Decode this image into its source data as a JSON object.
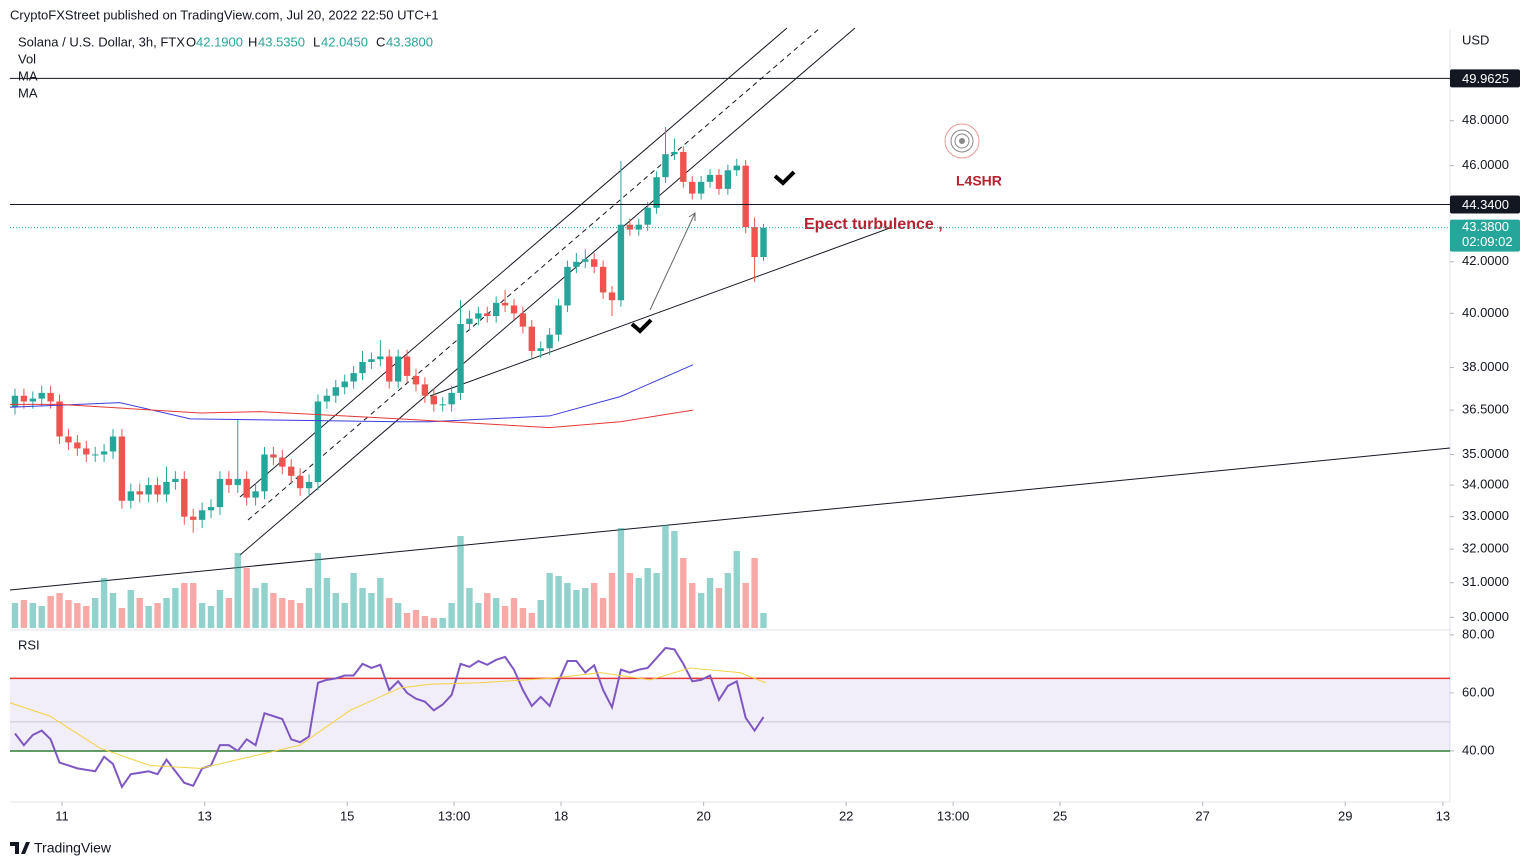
{
  "header": {
    "publisher": "CryptoFXStreet published on TradingView.com, Jul 20, 2022 22:50 UTC+1",
    "footer": "TradingView"
  },
  "chart_data": [
    {
      "type": "candlestick",
      "title": "Solana / U.S. Dollar, 3h, FTX",
      "ohlc_legend": [
        {
          "key": "O",
          "value": "42.1900"
        },
        {
          "key": "H",
          "value": "43.5350"
        },
        {
          "key": "L",
          "value": "42.0450"
        },
        {
          "key": "C",
          "value": "43.3800"
        }
      ],
      "volume_name": "Vol",
      "y_unit": "USD",
      "log_scale": true,
      "up_color": "#26a69a",
      "down_color": "#ef5350",
      "ylim": [
        29.7,
        52.3
      ],
      "yticks": [
        {
          "value": 48,
          "label": "48.0000"
        },
        {
          "value": 46,
          "label": "46.0000"
        },
        {
          "value": 42,
          "label": "42.0000"
        },
        {
          "value": 40,
          "label": "40.0000"
        },
        {
          "value": 38,
          "label": "38.0000"
        },
        {
          "value": 36.5,
          "label": "36.5000"
        },
        {
          "value": 35,
          "label": "35.0000"
        },
        {
          "value": 34,
          "label": "34.0000"
        },
        {
          "value": 33,
          "label": "33.0000"
        },
        {
          "value": 32,
          "label": "32.0000"
        },
        {
          "value": 31,
          "label": "31.0000"
        },
        {
          "value": 30,
          "label": "30.0000"
        }
      ],
      "xlim": [
        -0.73,
        19.47
      ],
      "x": [
        -0.66,
        -0.535,
        -0.41,
        -0.285,
        -0.16,
        -0.035,
        0.09,
        0.215,
        0.34,
        0.465,
        0.59,
        0.715,
        0.84,
        0.965,
        1.09,
        1.215,
        1.34,
        1.465,
        1.59,
        1.715,
        1.84,
        1.965,
        2.09,
        2.215,
        2.34,
        2.465,
        2.59,
        2.715,
        2.84,
        2.965,
        3.09,
        3.215,
        3.34,
        3.465,
        3.59,
        3.715,
        3.84,
        3.965,
        4.09,
        4.215,
        4.34,
        4.465,
        4.59,
        4.715,
        4.84,
        4.965,
        5.09,
        5.215,
        5.34,
        5.465,
        5.59,
        5.715,
        5.84,
        5.965,
        6.09,
        6.215,
        6.34,
        6.465,
        6.59,
        6.715,
        6.84,
        6.965,
        7.09,
        7.215,
        7.34,
        7.465,
        7.59,
        7.715,
        7.84,
        7.965,
        8.09,
        8.215,
        8.34,
        8.465,
        8.59,
        8.715,
        8.84,
        8.965,
        9.09,
        9.215,
        9.34,
        9.465,
        9.59,
        9.715,
        9.84
      ],
      "open": [
        36.6,
        37.0,
        36.8,
        36.9,
        37.1,
        36.8,
        35.6,
        35.4,
        35.2,
        35.0,
        35.0,
        35.1,
        35.6,
        33.5,
        33.8,
        33.7,
        34.0,
        33.7,
        34.1,
        34.2,
        33.0,
        32.9,
        33.2,
        33.3,
        34.2,
        34.0,
        34.2,
        33.6,
        33.8,
        35.0,
        34.9,
        34.6,
        34.3,
        33.9,
        34.1,
        36.8,
        37.0,
        37.3,
        37.5,
        37.8,
        38.2,
        38.3,
        38.4,
        37.5,
        38.4,
        37.7,
        37.4,
        37.0,
        36.7,
        36.7,
        37.1,
        39.6,
        39.8,
        40.0,
        39.9,
        40.4,
        40.3,
        40.0,
        39.5,
        38.6,
        38.7,
        39.2,
        40.3,
        41.8,
        42.0,
        42.1,
        41.8,
        40.8,
        40.5,
        43.5,
        43.3,
        43.5,
        44.2,
        45.5,
        46.5,
        46.6,
        45.3,
        44.8,
        45.3,
        45.6,
        45.0,
        45.8,
        46.0,
        43.4,
        42.19
      ],
      "high": [
        37.25,
        37.25,
        37.15,
        37.35,
        37.35,
        37.05,
        35.85,
        35.65,
        35.45,
        35.25,
        35.35,
        35.85,
        35.85,
        34.05,
        34.05,
        34.25,
        34.25,
        34.6,
        34.45,
        34.45,
        33.25,
        33.45,
        33.55,
        34.45,
        34.45,
        36.2,
        34.45,
        34.05,
        35.25,
        35.25,
        35.15,
        34.85,
        34.55,
        34.35,
        37.05,
        37.25,
        37.55,
        37.75,
        38.05,
        38.6,
        38.55,
        39.0,
        38.65,
        38.65,
        38.65,
        37.95,
        37.65,
        37.25,
        36.95,
        37.35,
        40.5,
        40.1,
        40.25,
        40.25,
        40.65,
        40.9,
        40.55,
        40.25,
        39.75,
        38.95,
        39.45,
        40.55,
        42.05,
        42.35,
        42.5,
        42.35,
        42.05,
        41.05,
        46.2,
        43.75,
        43.75,
        44.45,
        45.75,
        47.7,
        47.2,
        46.85,
        45.55,
        45.55,
        45.85,
        45.85,
        46.05,
        46.3,
        46.25,
        43.8,
        43.535
      ],
      "low": [
        36.35,
        36.55,
        36.55,
        36.65,
        36.55,
        35.35,
        35.15,
        34.95,
        34.75,
        34.75,
        34.75,
        34.85,
        33.25,
        33.25,
        33.45,
        33.45,
        33.45,
        33.45,
        33.85,
        32.75,
        32.5,
        32.65,
        32.95,
        33.05,
        33.75,
        33.75,
        33.35,
        33.35,
        33.55,
        34.65,
        34.35,
        34.05,
        33.65,
        33.65,
        33.85,
        36.55,
        36.75,
        37.05,
        37.25,
        37.55,
        37.95,
        38.05,
        37.25,
        37.25,
        37.45,
        37.15,
        36.75,
        36.45,
        36.45,
        36.45,
        36.85,
        39.35,
        39.55,
        39.65,
        39.65,
        40.05,
        39.75,
        39.25,
        38.35,
        38.35,
        38.45,
        38.95,
        40.05,
        41.55,
        41.75,
        41.55,
        40.55,
        39.9,
        40.25,
        43.05,
        43.05,
        43.25,
        43.95,
        45.25,
        46.25,
        45.05,
        44.55,
        44.55,
        45.05,
        44.75,
        44.75,
        45.55,
        43.15,
        41.2,
        42.045
      ],
      "close": [
        37.0,
        36.8,
        36.9,
        37.1,
        36.8,
        35.6,
        35.4,
        35.2,
        35.0,
        35.0,
        35.1,
        35.6,
        33.5,
        33.8,
        33.7,
        34.0,
        33.7,
        34.1,
        34.2,
        33.0,
        32.9,
        33.2,
        33.3,
        34.2,
        34.0,
        34.2,
        33.6,
        33.8,
        35.0,
        34.9,
        34.6,
        34.3,
        33.9,
        34.1,
        36.8,
        37.0,
        37.3,
        37.5,
        37.8,
        38.2,
        38.3,
        38.4,
        37.5,
        38.4,
        37.7,
        37.4,
        37.0,
        36.7,
        36.7,
        37.1,
        39.6,
        39.8,
        40.0,
        39.9,
        40.4,
        40.3,
        40.0,
        39.5,
        38.6,
        38.7,
        39.2,
        40.3,
        41.8,
        42.0,
        42.1,
        41.8,
        40.8,
        40.5,
        43.5,
        43.3,
        43.5,
        44.2,
        45.5,
        46.5,
        46.6,
        45.3,
        44.8,
        45.3,
        45.6,
        45.0,
        45.8,
        46.0,
        43.4,
        42.19,
        43.38
      ],
      "volume": [
        25,
        28,
        25,
        22,
        32,
        35,
        28,
        25,
        22,
        30,
        50,
        35,
        20,
        38,
        30,
        22,
        25,
        30,
        40,
        45,
        45,
        25,
        22,
        38,
        30,
        75,
        60,
        40,
        45,
        35,
        30,
        28,
        25,
        40,
        75,
        50,
        35,
        25,
        55,
        40,
        35,
        50,
        30,
        25,
        15,
        18,
        12,
        10,
        10,
        25,
        92,
        40,
        25,
        35,
        30,
        22,
        30,
        20,
        15,
        28,
        55,
        52,
        45,
        38,
        40,
        45,
        30,
        55,
        100,
        55,
        50,
        60,
        55,
        103,
        97,
        70,
        45,
        35,
        50,
        40,
        55,
        77,
        45,
        70,
        15
      ],
      "series": [
        {
          "name": "MA",
          "color": "#3d3ddc",
          "x": [
            -0.73,
            0.81,
            1.8,
            4.74,
            5.16,
            6.84,
            7.83,
            8.85
          ],
          "values": [
            36.6,
            36.76,
            36.2,
            36.1,
            36.1,
            36.3,
            36.97,
            38.1
          ]
        },
        {
          "name": "MA",
          "color": "#e53935",
          "x": [
            -0.73,
            -0.03,
            1.94,
            2.78,
            4.74,
            6.84,
            7.83,
            8.85
          ],
          "values": [
            36.7,
            36.7,
            36.4,
            36.45,
            36.2,
            35.9,
            36.1,
            36.5
          ]
        }
      ],
      "price_lines": [
        49.9625,
        {
          "value": 44.34,
          "label": "44.3400"
        }
      ],
      "last_price": {
        "value": 43.38,
        "label": "43.3800",
        "countdown": "02:09:02"
      },
      "annotations": [
        "Epect turbulence ,",
        "L4SHR"
      ]
    },
    {
      "type": "line",
      "title": "RSI",
      "ylim": [
        23.1,
        80.3
      ],
      "yticks": [
        {
          "value": 80,
          "label": "80.00"
        },
        {
          "value": 60,
          "label": "60.00"
        },
        {
          "value": 40,
          "label": "40.00"
        }
      ],
      "bands": {
        "upper": 65,
        "middle": 50,
        "lower": 40
      },
      "xlim": [
        -0.73,
        19.47
      ],
      "xticks": [
        {
          "value": 0,
          "label": "11"
        },
        {
          "value": 2,
          "label": "13"
        },
        {
          "value": 4,
          "label": "15"
        },
        {
          "value": 5.5,
          "label": "13:00"
        },
        {
          "value": 7,
          "label": "18"
        },
        {
          "value": 9,
          "label": "20"
        },
        {
          "value": 11,
          "label": "22"
        },
        {
          "value": 12.5,
          "label": "13:00"
        },
        {
          "value": 14,
          "label": "25"
        },
        {
          "value": 16,
          "label": "27"
        },
        {
          "value": 18,
          "label": "29"
        },
        {
          "value": 19.37,
          "label": "13"
        }
      ],
      "series": [
        {
          "color": "#7e57c2",
          "values": [
            46,
            42,
            45.5,
            47,
            44,
            36,
            35,
            34,
            33.5,
            33,
            38,
            35.5,
            27.6,
            32,
            32.5,
            33,
            32,
            37,
            33,
            29,
            28,
            34,
            35,
            42,
            42,
            40,
            44,
            42,
            53,
            52,
            51,
            44,
            43,
            45,
            63.5,
            64.5,
            65,
            66,
            66,
            70,
            68.6,
            69.7,
            61,
            64,
            60,
            58,
            57,
            54,
            56,
            59.3,
            70,
            69,
            71,
            69.7,
            71.4,
            72.4,
            68,
            61,
            55.5,
            58.6,
            55.5,
            64,
            71,
            71,
            67,
            69.5,
            61,
            55,
            68,
            67,
            68,
            68.6,
            72,
            75.5,
            75,
            70,
            64,
            64.5,
            66,
            57.6,
            62.4,
            64,
            51.4,
            47,
            51.7
          ]
        },
        {
          "color": "#f5d142",
          "x": [
            -0.73,
            -0.17,
            0.53,
            1.23,
            1.94,
            2.64,
            3.34,
            4.04,
            4.74,
            5.16,
            5.86,
            6.84,
            7.55,
            8.25,
            8.81,
            9.51,
            9.87
          ],
          "values": [
            56.6,
            52,
            41,
            35,
            34,
            38,
            42,
            54,
            61.7,
            63,
            63.5,
            65,
            67,
            64.5,
            68.6,
            67,
            63.5
          ]
        }
      ]
    }
  ]
}
